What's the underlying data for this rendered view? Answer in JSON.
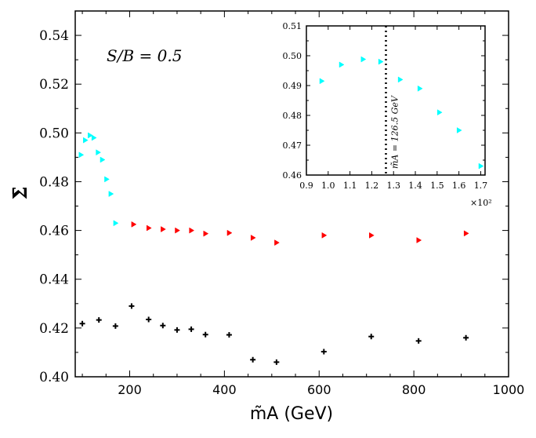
{
  "chart_data": [
    {
      "type": "scatter",
      "annotation": "S/B = 0.5",
      "ylabel": "Σ̄",
      "xlabel": "m̃A (GeV)",
      "xlim": [
        85,
        1000
      ],
      "ylim": [
        0.4,
        0.55
      ],
      "xticks": [
        200,
        400,
        600,
        800,
        1000
      ],
      "xtick_labels": [
        "200",
        "400",
        "600",
        "800",
        "1000"
      ],
      "yticks": [
        0.4,
        0.42,
        0.44,
        0.46,
        0.48,
        0.5,
        0.52,
        0.54
      ],
      "ytick_labels": [
        "0.40",
        "0.42",
        "0.44",
        "0.46",
        "0.48",
        "0.50",
        "0.52",
        "0.54"
      ],
      "series": [
        {
          "name": "cyan",
          "marker": "triangle-right",
          "color": "#00ffff",
          "x": [
            97,
            106,
            116,
            124,
            133,
            142,
            151,
            160,
            170
          ],
          "y": [
            0.491,
            0.497,
            0.499,
            0.498,
            0.492,
            0.489,
            0.481,
            0.475,
            0.463
          ]
        },
        {
          "name": "red",
          "marker": "triangle-right",
          "color": "#ff0000",
          "x": [
            208,
            240,
            270,
            300,
            330,
            360,
            410,
            460,
            510,
            610,
            710,
            810,
            910
          ],
          "y": [
            0.4625,
            0.461,
            0.4605,
            0.46,
            0.46,
            0.4587,
            0.459,
            0.457,
            0.455,
            0.458,
            0.458,
            0.456,
            0.4588
          ]
        },
        {
          "name": "black",
          "marker": "plus",
          "color": "#000000",
          "x": [
            100,
            135,
            170,
            204,
            240,
            270,
            300,
            330,
            360,
            410,
            460,
            510,
            610,
            710,
            810,
            910
          ],
          "y": [
            0.4218,
            0.4233,
            0.4208,
            0.429,
            0.4235,
            0.421,
            0.4192,
            0.4195,
            0.4173,
            0.4172,
            0.407,
            0.406,
            0.4103,
            0.4165,
            0.4147,
            0.416
          ]
        }
      ]
    },
    {
      "type": "scatter",
      "role": "inset",
      "xlim": [
        0.9,
        1.72
      ],
      "ylim": [
        0.46,
        0.51
      ],
      "xticks": [
        0.9,
        1.0,
        1.1,
        1.2,
        1.3,
        1.4,
        1.5,
        1.6,
        1.7
      ],
      "xtick_labels": [
        "0.9",
        "1.0",
        "1.1",
        "1.2",
        "1.3",
        "1.4",
        "1.5",
        "1.6",
        "1.7"
      ],
      "yticks": [
        0.46,
        0.47,
        0.48,
        0.49,
        0.5,
        0.51
      ],
      "ytick_labels": [
        "0.46",
        "0.47",
        "0.48",
        "0.49",
        "0.50",
        "0.51"
      ],
      "x_multiplier": "×10²",
      "vline": {
        "x": 1.265,
        "label": "m̃A = 126.5 GeV"
      },
      "series": [
        {
          "name": "cyan",
          "marker": "triangle-right",
          "color": "#00ffff",
          "x": [
            0.97,
            1.06,
            1.16,
            1.24,
            1.33,
            1.42,
            1.51,
            1.6,
            1.7
          ],
          "y": [
            0.4915,
            0.497,
            0.4988,
            0.498,
            0.492,
            0.489,
            0.481,
            0.475,
            0.463
          ]
        }
      ]
    }
  ]
}
